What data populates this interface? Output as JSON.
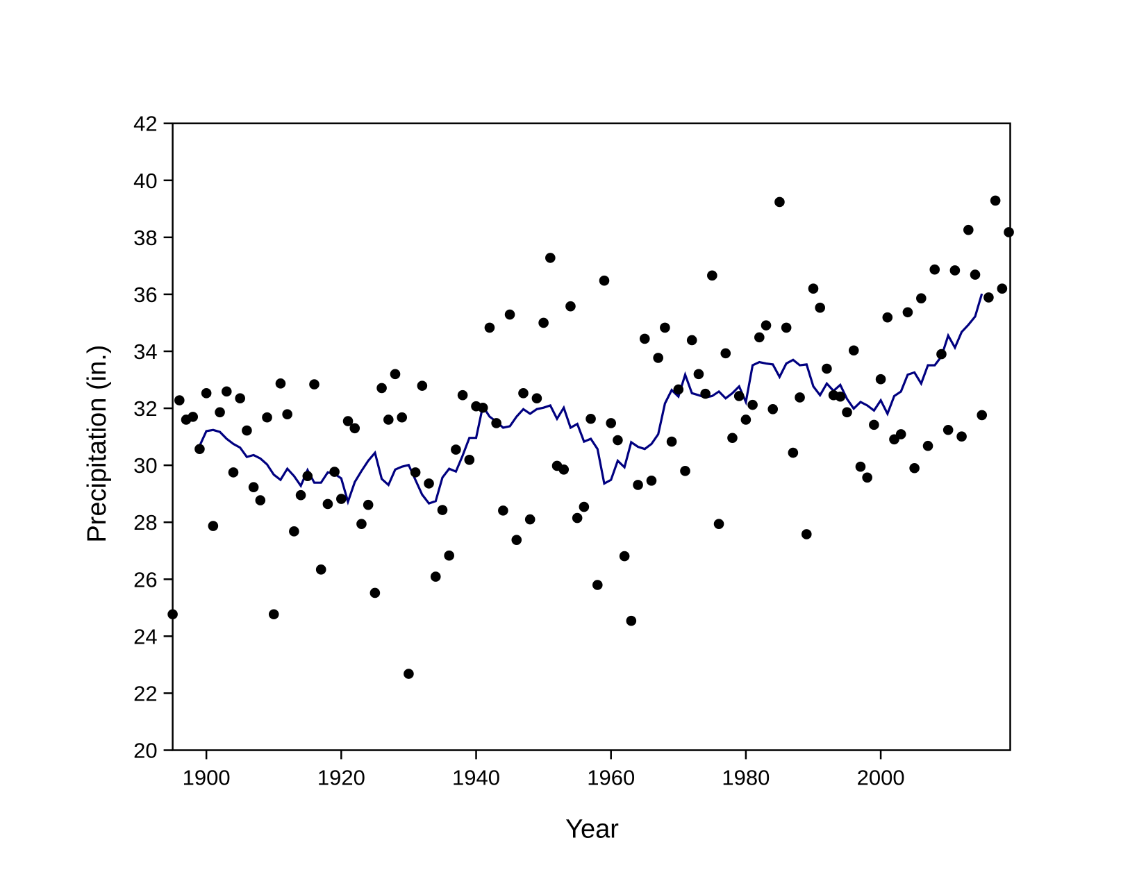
{
  "chart_data": {
    "type": "scatter",
    "title": "",
    "xlabel": "Year",
    "ylabel": "Precipitation (in.)",
    "xlim": [
      1895,
      2019.2
    ],
    "ylim": [
      20,
      42
    ],
    "xticks": [
      1900,
      1920,
      1940,
      1960,
      1980,
      2000
    ],
    "yticks": [
      20,
      22,
      24,
      26,
      28,
      30,
      32,
      34,
      36,
      38,
      40,
      42
    ],
    "grid": false,
    "legend": "none",
    "colors": {
      "points": "#000000",
      "line": "#000080",
      "axes": "#000000"
    },
    "series": [
      {
        "type": "scatter",
        "x_start": 1895,
        "values": [
          24.77,
          32.28,
          31.6,
          31.7,
          30.57,
          32.53,
          27.87,
          31.86,
          32.59,
          29.75,
          32.35,
          31.22,
          29.23,
          28.77,
          31.68,
          24.77,
          32.87,
          31.79,
          27.68,
          28.95,
          29.62,
          32.84,
          26.34,
          28.64,
          29.77,
          28.82,
          31.55,
          31.3,
          27.94,
          28.61,
          25.52,
          32.71,
          31.6,
          33.2,
          31.68,
          22.68,
          29.75,
          32.79,
          29.36,
          26.09,
          28.43,
          26.83,
          30.55,
          32.46,
          30.19,
          32.07,
          32.02,
          34.83,
          31.48,
          28.41,
          35.29,
          27.38,
          32.53,
          28.1,
          32.35,
          35.0,
          37.28,
          29.98,
          29.85,
          35.58,
          28.15,
          28.54,
          31.63,
          25.8,
          36.48,
          31.48,
          30.88,
          26.81,
          24.54,
          29.31,
          34.44,
          29.46,
          33.77,
          34.83,
          30.83,
          32.66,
          29.8,
          34.39,
          33.2,
          32.51,
          36.66,
          27.94,
          33.93,
          30.96,
          32.43,
          31.6,
          32.12,
          34.49,
          34.91,
          31.97,
          39.24,
          34.83,
          30.44,
          32.38,
          27.58,
          36.2,
          35.53,
          33.39,
          32.46,
          32.41,
          31.86,
          34.03,
          29.95,
          29.57,
          31.42,
          33.02,
          35.19,
          30.91,
          31.09,
          35.37,
          29.9,
          35.86,
          30.68,
          36.87,
          33.9,
          31.24,
          36.84,
          31.01,
          38.26,
          36.69,
          31.76,
          35.89,
          39.29,
          36.2,
          38.18
        ]
      },
      {
        "type": "line",
        "x_start": 1899,
        "values": [
          30.68,
          31.2,
          31.24,
          31.17,
          30.93,
          30.75,
          30.62,
          30.29,
          30.36,
          30.24,
          30.03,
          29.67,
          29.49,
          29.88,
          29.62,
          29.28,
          29.83,
          29.39,
          29.39,
          29.75,
          29.7,
          29.54,
          28.72,
          29.41,
          29.8,
          30.16,
          30.44,
          29.52,
          29.31,
          29.85,
          29.95,
          30.01,
          29.49,
          28.97,
          28.66,
          28.74,
          29.57,
          29.88,
          29.78,
          30.34,
          30.96,
          30.96,
          32.07,
          31.71,
          31.53,
          31.32,
          31.37,
          31.71,
          31.97,
          31.81,
          31.97,
          32.02,
          32.1,
          31.63,
          32.02,
          31.32,
          31.45,
          30.83,
          30.93,
          30.57,
          29.36,
          29.49,
          30.16,
          29.93,
          30.81,
          30.65,
          30.57,
          30.75,
          31.09,
          32.17,
          32.64,
          32.41,
          33.18,
          32.53,
          32.46,
          32.38,
          32.43,
          32.59,
          32.35,
          32.53,
          32.77,
          32.22,
          33.51,
          33.62,
          33.57,
          33.54,
          33.1,
          33.57,
          33.7,
          33.51,
          33.54,
          32.77,
          32.46,
          32.87,
          32.61,
          32.82,
          32.33,
          31.99,
          32.22,
          32.1,
          31.92,
          32.28,
          31.81,
          32.43,
          32.59,
          33.18,
          33.26,
          32.87,
          33.51,
          33.51,
          33.82,
          34.55,
          34.13,
          34.68,
          34.93,
          35.22,
          36.02
        ]
      }
    ]
  }
}
